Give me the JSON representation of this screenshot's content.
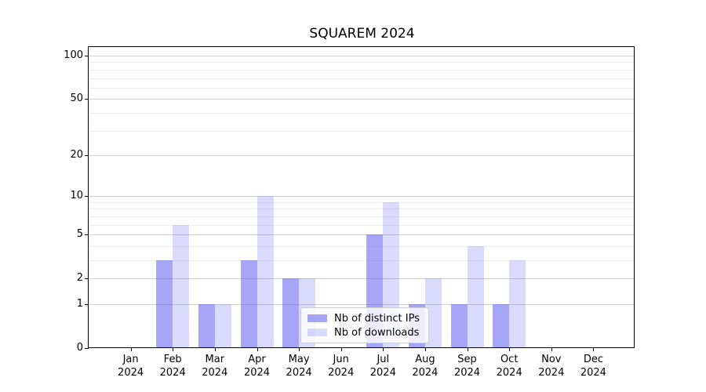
{
  "title": "SQUAREM 2024",
  "chart_data": {
    "type": "bar",
    "title": "SQUAREM 2024",
    "categories": [
      "Jan",
      "Feb",
      "Mar",
      "Apr",
      "May",
      "Jun",
      "Jul",
      "Aug",
      "Sep",
      "Oct",
      "Nov",
      "Dec"
    ],
    "category_year": "2024",
    "series": [
      {
        "name": "Nb of distinct IPs",
        "color": "rgba(85,85,240,0.52)",
        "values": [
          0,
          3,
          1,
          3,
          2,
          0,
          5,
          1,
          1,
          1,
          0,
          0
        ]
      },
      {
        "name": "Nb of downloads",
        "color": "rgba(85,85,240,0.22)",
        "values": [
          0,
          6,
          1,
          10,
          2,
          0,
          9,
          2,
          4,
          3,
          0,
          0
        ]
      }
    ],
    "yscale": "log1p",
    "ylim": [
      0,
      115
    ],
    "y_tick_values": [
      0,
      1,
      2,
      5,
      10,
      20,
      50,
      100
    ],
    "y_major_gridlines": [
      1,
      2,
      5,
      10,
      20,
      50,
      100
    ],
    "y_minor_gridlines": [
      3,
      4,
      6,
      7,
      8,
      9,
      30,
      40,
      60,
      70,
      80,
      90
    ],
    "legend": {
      "position": "lower center",
      "items": [
        "Nb of distinct IPs",
        "Nb of downloads"
      ]
    },
    "grid": true,
    "legend_visible": true
  },
  "colors": {
    "background": "#ffffff",
    "axis": "#000000",
    "text": "#000000",
    "grid_major": "#d2d2d2",
    "grid_minor": "#efefef",
    "bar_distinct_ips": "rgba(85,85,240,0.52)",
    "bar_downloads": "rgba(85,85,240,0.22)",
    "legend_border": "#cccccc",
    "legend_background": "rgba(255,255,255,0.8)"
  }
}
